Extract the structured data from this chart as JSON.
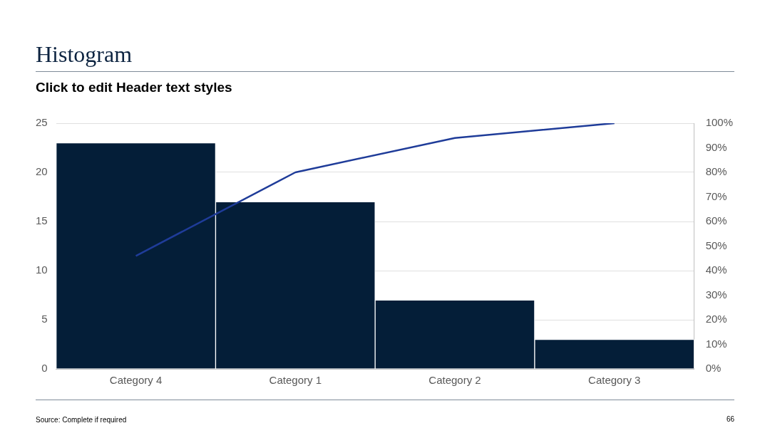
{
  "chart_data": {
    "type": "bar",
    "title": "Histogram",
    "subtitle": "Click to edit Header text styles",
    "categories": [
      "Category 4",
      "Category 1",
      "Category 2",
      "Category 3"
    ],
    "series": [
      {
        "color": "#041e38",
        "values": [
          23,
          17,
          7,
          3
        ]
      },
      {
        "type": "line",
        "axis": "y2",
        "color": "#1f3c99",
        "values": [
          46,
          80,
          94,
          100
        ]
      }
    ],
    "ylim": [
      0,
      25
    ],
    "yticks": [
      0,
      5,
      10,
      15,
      20,
      25
    ],
    "y2lim": [
      0,
      100
    ],
    "y2ticks": [
      {
        "value": 0,
        "label": "0%"
      },
      {
        "value": 10,
        "label": "10%"
      },
      {
        "value": 20,
        "label": "20%"
      },
      {
        "value": 30,
        "label": "30%"
      },
      {
        "value": 40,
        "label": "40%"
      },
      {
        "value": 50,
        "label": "50%"
      },
      {
        "value": 60,
        "label": "60%"
      },
      {
        "value": 70,
        "label": "70%"
      },
      {
        "value": 80,
        "label": "80%"
      },
      {
        "value": 90,
        "label": "90%"
      },
      {
        "value": 100,
        "label": "100%"
      }
    ],
    "grid": "y",
    "marker": "none",
    "annotations": [
      "Source: Complete if required",
      "66"
    ]
  }
}
